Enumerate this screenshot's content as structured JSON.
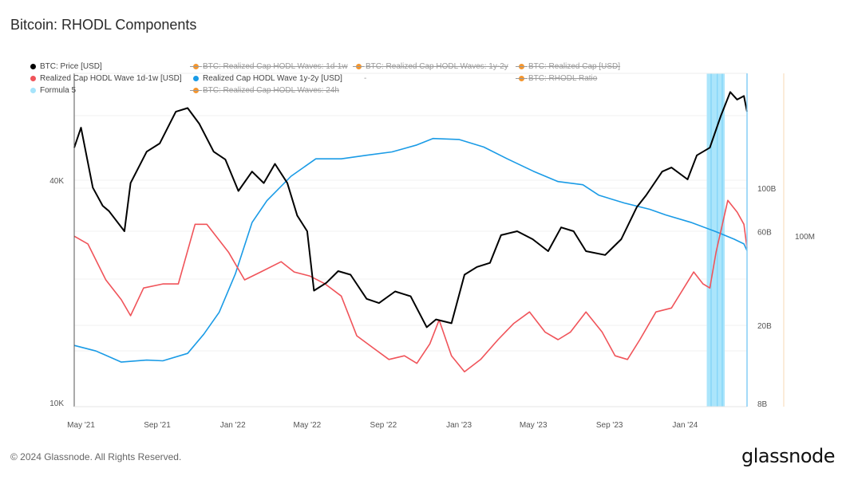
{
  "page": {
    "title": "Bitcoin: RHODL Components",
    "footer": "© 2024 Glassnode. All Rights Reserved.",
    "brand": "glassnode"
  },
  "legend": [
    {
      "label": "BTC: Price [USD]",
      "color": "#000000",
      "enabled": true
    },
    {
      "label": "Realized Cap HODL Wave 1d-1w [USD]",
      "color": "#f0545a",
      "enabled": true
    },
    {
      "label": "Formula 5",
      "color": "#a6e4fb",
      "enabled": true
    },
    {
      "label": "BTC: Realized Cap HODL Waves: 1d-1w",
      "color": "#f5962d",
      "enabled": false
    },
    {
      "label": "Realized Cap HODL Wave 1y-2y [USD]",
      "color": "#1a9be6",
      "enabled": true
    },
    {
      "label": "BTC: Realized Cap HODL Waves: 24h",
      "color": "#f5962d",
      "enabled": false
    },
    {
      "label": "BTC: Realized Cap HODL Waves: 1y-2y",
      "color": "#f5962d",
      "enabled": false
    },
    {
      "label": "-",
      "color": "",
      "enabled": true
    },
    {
      "label": "BTC: Realized Cap [USD]",
      "color": "#f5962d",
      "enabled": false
    },
    {
      "label": "BTC: RHODL Ratio",
      "color": "#f5962d",
      "enabled": false
    }
  ],
  "chart_data": {
    "type": "line",
    "title": "Bitcoin: RHODL Components",
    "x_range": [
      "2021-04-20",
      "2024-04-10"
    ],
    "x_ticks": [
      "May '21",
      "Sep '21",
      "Jan '22",
      "May '22",
      "Sep '22",
      "Jan '23",
      "May '23",
      "Sep '23",
      "Jan '24"
    ],
    "y_axes": {
      "price": {
        "scale": "log",
        "ticks": [
          "10K",
          "40K"
        ],
        "range": [
          9800,
          80000
        ],
        "position": "left"
      },
      "realized_cap": {
        "scale": "log",
        "ticks": [
          "8B",
          "20B",
          "60B",
          "100B"
        ],
        "range": [
          8000000000.0,
          320000000000.0
        ],
        "position": "right"
      },
      "ratio": {
        "ticks": [
          "100M"
        ],
        "position": "right-outer"
      }
    },
    "grid": true,
    "legend_position": "top",
    "series": [
      {
        "name": "BTC: Price [USD]",
        "axis": "price",
        "color": "#000000",
        "x": [
          "2021-04-20",
          "2021-05-01",
          "2021-05-20",
          "2021-06-05",
          "2021-06-15",
          "2021-07-10",
          "2021-07-20",
          "2021-08-15",
          "2021-09-05",
          "2021-10-01",
          "2021-10-20",
          "2021-11-08",
          "2021-12-01",
          "2021-12-20",
          "2022-01-10",
          "2022-02-01",
          "2022-02-20",
          "2022-03-10",
          "2022-03-30",
          "2022-04-15",
          "2022-05-01",
          "2022-05-12",
          "2022-06-01",
          "2022-06-20",
          "2022-07-10",
          "2022-08-05",
          "2022-08-25",
          "2022-09-20",
          "2022-10-15",
          "2022-11-10",
          "2022-11-25",
          "2022-12-20",
          "2023-01-10",
          "2023-01-30",
          "2023-02-20",
          "2023-03-10",
          "2023-04-05",
          "2023-04-30",
          "2023-05-25",
          "2023-06-15",
          "2023-07-05",
          "2023-07-25",
          "2023-08-25",
          "2023-09-20",
          "2023-10-15",
          "2023-10-30",
          "2023-11-25",
          "2023-12-10",
          "2024-01-05",
          "2024-01-20",
          "2024-02-10",
          "2024-02-28",
          "2024-03-14",
          "2024-03-25",
          "2024-04-05",
          "2024-04-10"
        ],
        "values": [
          49000,
          55500,
          38200,
          34100,
          33000,
          29100,
          39300,
          47800,
          50300,
          61300,
          62700,
          56800,
          47800,
          45500,
          37400,
          42200,
          39300,
          44300,
          39300,
          32100,
          29100,
          20100,
          21100,
          22700,
          22200,
          19100,
          18600,
          20000,
          19400,
          16000,
          16800,
          16400,
          22200,
          23300,
          23900,
          28400,
          29100,
          27700,
          25700,
          29800,
          29100,
          25700,
          25100,
          27700,
          33800,
          36400,
          42200,
          43300,
          40200,
          46700,
          49000,
          59900,
          69300,
          66100,
          67600,
          61300
        ]
      },
      {
        "name": "Realized Cap HODL Wave 1y-2y [USD]",
        "axis": "realized_cap",
        "color": "#1a9be6",
        "x": [
          "2021-04-20",
          "2021-05-25",
          "2021-07-05",
          "2021-08-15",
          "2021-09-10",
          "2021-10-20",
          "2021-11-15",
          "2021-12-10",
          "2022-01-05",
          "2022-02-01",
          "2022-02-25",
          "2022-04-05",
          "2022-05-15",
          "2022-06-25",
          "2022-08-05",
          "2022-09-15",
          "2022-10-25",
          "2022-11-20",
          "2023-01-01",
          "2023-02-10",
          "2023-03-20",
          "2023-05-01",
          "2023-06-10",
          "2023-07-20",
          "2023-08-15",
          "2023-09-25",
          "2023-11-05",
          "2023-12-01",
          "2024-01-10",
          "2024-02-20",
          "2024-03-20",
          "2024-04-05",
          "2024-04-10"
        ],
        "values": [
          15800000000.0,
          14800000000.0,
          13000000000.0,
          13300000000.0,
          13200000000.0,
          14400000000.0,
          18000000000.0,
          23300000000.0,
          36500000000.0,
          66800000000.0,
          86300000000.0,
          115000000000.0,
          141000000000.0,
          141000000000.0,
          147000000000.0,
          153000000000.0,
          166000000000.0,
          179000000000.0,
          177000000000.0,
          162000000000.0,
          141000000000.0,
          122000000000.0,
          108000000000.0,
          104000000000.0,
          92000000000.0,
          84000000000.0,
          78000000000.0,
          73000000000.0,
          67000000000.0,
          60000000000.0,
          55000000000.0,
          52000000000.0,
          48000000000.0
        ]
      },
      {
        "name": "Realized Cap HODL Wave 1d-1w [USD]",
        "axis": "realized_cap",
        "color": "#f0545a",
        "x": [
          "2021-04-20",
          "2021-05-12",
          "2021-06-10",
          "2021-07-05",
          "2021-07-20",
          "2021-08-10",
          "2021-09-10",
          "2021-10-05",
          "2021-11-01",
          "2021-11-20",
          "2021-12-25",
          "2022-01-20",
          "2022-02-15",
          "2022-03-20",
          "2022-04-10",
          "2022-05-05",
          "2022-05-30",
          "2022-06-25",
          "2022-07-20",
          "2022-08-15",
          "2022-09-10",
          "2022-10-05",
          "2022-10-25",
          "2022-11-15",
          "2022-11-30",
          "2022-12-20",
          "2023-01-10",
          "2023-02-05",
          "2023-03-05",
          "2023-03-30",
          "2023-04-25",
          "2023-05-20",
          "2023-06-10",
          "2023-06-30",
          "2023-07-25",
          "2023-08-20",
          "2023-09-10",
          "2023-09-30",
          "2023-10-20",
          "2023-11-15",
          "2023-12-10",
          "2023-12-30",
          "2024-01-15",
          "2024-01-30",
          "2024-02-10",
          "2024-02-20",
          "2024-03-10",
          "2024-03-25",
          "2024-04-05",
          "2024-04-10"
        ],
        "values": [
          56900000000.0,
          52000000000.0,
          34100000000.0,
          27000000000.0,
          22400000000.0,
          31000000000.0,
          32500000000.0,
          32500000000.0,
          65400000000.0,
          65400000000.0,
          47200000000.0,
          34100000000.0,
          37400000000.0,
          42200000000.0,
          37400000000.0,
          35700000000.0,
          32500000000.0,
          28200000000.0,
          17700000000.0,
          15400000000.0,
          13400000000.0,
          14000000000.0,
          12800000000.0,
          16100000000.0,
          21300000000.0,
          14000000000.0,
          11600000000.0,
          13400000000.0,
          16900000000.0,
          20400000000.0,
          23400000000.0,
          18500000000.0,
          16900000000.0,
          18500000000.0,
          23400000000.0,
          18500000000.0,
          14000000000.0,
          13400000000.0,
          16900000000.0,
          23400000000.0,
          24500000000.0,
          31000000000.0,
          37400000000.0,
          32500000000.0,
          31000000000.0,
          47200000000.0,
          86600000000.0,
          75500000000.0,
          65400000000.0,
          49400000000.0
        ]
      },
      {
        "name": "Formula 5",
        "type": "highlight-band",
        "color": "#a6e4fb",
        "bands": [
          [
            "2024-02-05",
            "2024-03-05"
          ]
        ],
        "markers": [
          "2024-02-12",
          "2024-02-22",
          "2024-03-01",
          "2024-04-10"
        ]
      }
    ]
  }
}
